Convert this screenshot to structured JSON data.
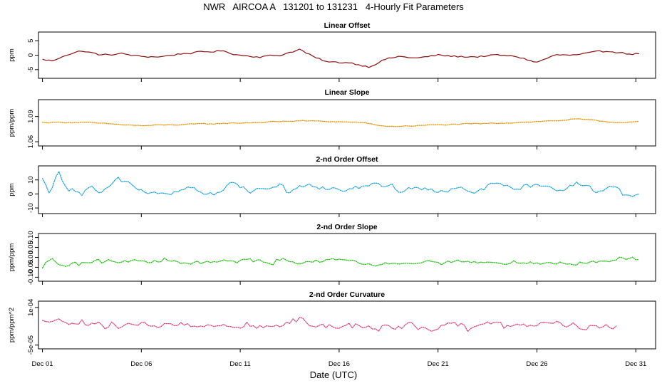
{
  "title": "NWR   AIRCOA A   131201 to 131231   4-Hourly Fit Parameters",
  "xlabel": "Date (UTC)",
  "chart_data": [
    {
      "type": "line",
      "title": "Linear Offset",
      "ylabel": "ppm",
      "ylim": [
        -8,
        8
      ],
      "yticks": [
        -5,
        0,
        5
      ],
      "ytick_labels": [
        "-5",
        "0",
        "5"
      ],
      "xlim": [
        0.8,
        32.0
      ],
      "xticks": [
        1,
        6,
        11,
        16,
        21,
        26,
        31
      ],
      "xtick_labels": [
        "Dec 01",
        "Dec 06",
        "Dec 11",
        "Dec 16",
        "Dec 21",
        "Dec 26",
        "Dec 31"
      ],
      "x_start": 1.0,
      "x_end": 31.2,
      "knots_x": [
        1.0,
        1.6,
        2.1,
        3.0,
        4.0,
        5.0,
        6.0,
        7.0,
        8.0,
        9.0,
        10.0,
        11.0,
        12.0,
        13.0,
        14.0,
        14.8,
        15.5,
        16.5,
        17.5,
        18.3,
        19.0,
        20.0,
        21.0,
        22.0,
        23.0,
        24.0,
        25.0,
        26.0,
        26.9,
        28.0,
        29.0,
        29.8,
        30.5,
        31.2
      ],
      "knots_y": [
        -1.5,
        -2.0,
        0.0,
        1.5,
        0.0,
        0.5,
        -0.5,
        -0.5,
        0.5,
        1.0,
        1.5,
        0.0,
        -0.5,
        0.0,
        2.0,
        -1.0,
        -2.5,
        -2.5,
        -4.0,
        -1.5,
        -0.5,
        -1.0,
        0.0,
        -0.5,
        -0.5,
        0.0,
        -0.5,
        -2.5,
        0.0,
        0.0,
        1.0,
        1.5,
        0.5,
        0.5
      ],
      "noise": 0.5,
      "series_color": "#8b1010",
      "style": "solid"
    },
    {
      "type": "line",
      "title": "Linear Slope",
      "ylabel": "ppm/ppm",
      "ylim": [
        1.055,
        1.11
      ],
      "yticks": [
        1.06,
        1.09
      ],
      "ytick_labels": [
        "1.06",
        "1.09"
      ],
      "xlim": [
        0.8,
        32.0
      ],
      "xticks": [
        1,
        6,
        11,
        16,
        21,
        26,
        31
      ],
      "x_start": 1.0,
      "x_end": 31.2,
      "knots_x": [
        1.0,
        3.0,
        6.0,
        9.0,
        12.0,
        14.0,
        17.0,
        18.5,
        21.0,
        24.0,
        27.0,
        28.0,
        30.0,
        31.2
      ],
      "knots_y": [
        1.083,
        1.083,
        1.079,
        1.081,
        1.083,
        1.085,
        1.083,
        1.078,
        1.08,
        1.082,
        1.085,
        1.087,
        1.083,
        1.084
      ],
      "noise": 0.001,
      "series_color": "#e39400",
      "style": "dotted"
    },
    {
      "type": "line",
      "title": "2-nd Order Offset",
      "ylabel": "ppm",
      "ylim": [
        -14,
        20
      ],
      "yticks": [
        -10,
        0,
        10
      ],
      "ytick_labels": [
        "-10",
        "0",
        "10"
      ],
      "xlim": [
        0.8,
        32.0
      ],
      "xticks": [
        1,
        6,
        11,
        16,
        21,
        26,
        31
      ],
      "x_start": 1.0,
      "x_end": 31.2,
      "knots_x": [
        1.0,
        1.4,
        1.8,
        2.3,
        3.0,
        3.5,
        4.0,
        4.8,
        5.5,
        6.2,
        7.5,
        8.5,
        9.5,
        10.5,
        11.5,
        12.5,
        13.5,
        14.5,
        15.0,
        16.0,
        17.0,
        18.0,
        19.0,
        20.0,
        21.0,
        22.0,
        23.0,
        24.0,
        25.0,
        26.0,
        27.0,
        28.0,
        29.0,
        30.0,
        30.3,
        31.2
      ],
      "knots_y": [
        10.0,
        0.0,
        15.0,
        5.0,
        0.0,
        5.0,
        0.0,
        10.0,
        5.0,
        3.0,
        2.0,
        5.0,
        0.0,
        8.0,
        2.0,
        5.0,
        3.0,
        8.0,
        5.0,
        3.0,
        5.0,
        8.0,
        2.0,
        5.0,
        3.0,
        5.0,
        2.0,
        8.0,
        5.0,
        5.0,
        2.0,
        8.0,
        2.0,
        5.0,
        0.0,
        0.0
      ],
      "noise": 6.0,
      "series_color": "#1aa2e0",
      "style": "dotted"
    },
    {
      "type": "line",
      "title": "2-nd Order Slope",
      "ylabel": "ppm/ppm",
      "ylim": [
        -0.12,
        0.12
      ],
      "yticks": [
        -0.1,
        -0.05,
        0.0,
        0.05,
        0.1
      ],
      "ytick_labels": [
        "-0.10",
        "-0.05",
        "0.00",
        "0.05",
        "0.10"
      ],
      "xlim": [
        0.8,
        32.0
      ],
      "xticks": [
        1,
        6,
        11,
        16,
        21,
        26,
        31
      ],
      "x_start": 1.0,
      "x_end": 31.2,
      "knots_x": [
        1.0,
        1.5,
        2.2,
        3.0,
        4.0,
        5.0,
        6.0,
        7.5,
        9.0,
        10.5,
        12.0,
        13.5,
        15.0,
        16.5,
        18.0,
        19.5,
        21.0,
        22.5,
        24.0,
        25.5,
        27.0,
        28.5,
        29.8,
        30.2,
        31.2
      ],
      "knots_y": [
        -0.06,
        -0.02,
        -0.04,
        -0.03,
        -0.02,
        -0.03,
        -0.02,
        -0.02,
        -0.03,
        -0.02,
        -0.02,
        -0.03,
        -0.02,
        -0.02,
        -0.03,
        -0.02,
        -0.03,
        -0.02,
        -0.03,
        -0.02,
        -0.03,
        -0.02,
        -0.03,
        0.0,
        0.0
      ],
      "noise": 0.035,
      "series_color": "#22c012",
      "style": "dotted"
    },
    {
      "type": "line",
      "title": "2-nd Order Curvature",
      "ylabel": "ppm/ppm^2",
      "ylim": [
        -6.5e-05,
        0.000125
      ],
      "yticks": [
        -5e-05,
        0.0001
      ],
      "ytick_labels": [
        "-5e-05",
        "1e-04"
      ],
      "xlim": [
        0.8,
        32.0
      ],
      "xticks": [
        1,
        6,
        11,
        16,
        21,
        26,
        31
      ],
      "x_start": 1.0,
      "x_end": 30.1,
      "knots_x": [
        1.0,
        2.0,
        3.0,
        4.0,
        5.0,
        6.0,
        7.0,
        8.0,
        9.0,
        10.0,
        11.0,
        12.0,
        13.0,
        14.0,
        15.0,
        16.0,
        17.0,
        18.0,
        19.0,
        20.0,
        21.0,
        22.0,
        23.0,
        24.0,
        25.0,
        26.0,
        27.0,
        28.0,
        29.0,
        30.1
      ],
      "knots_y": [
        4e-05,
        5e-05,
        3e-05,
        3e-05,
        2e-05,
        3e-05,
        3e-05,
        3e-05,
        2e-05,
        3e-05,
        3e-05,
        2e-05,
        3e-05,
        4e-05,
        3e-05,
        2e-05,
        3e-05,
        2e-05,
        3e-05,
        2e-05,
        2e-05,
        3e-05,
        3e-05,
        3e-05,
        2e-05,
        3e-05,
        4e-05,
        3e-05,
        2e-05,
        3e-05
      ],
      "noise": 4e-05,
      "series_color": "#e0407a",
      "style": "dotted"
    }
  ]
}
